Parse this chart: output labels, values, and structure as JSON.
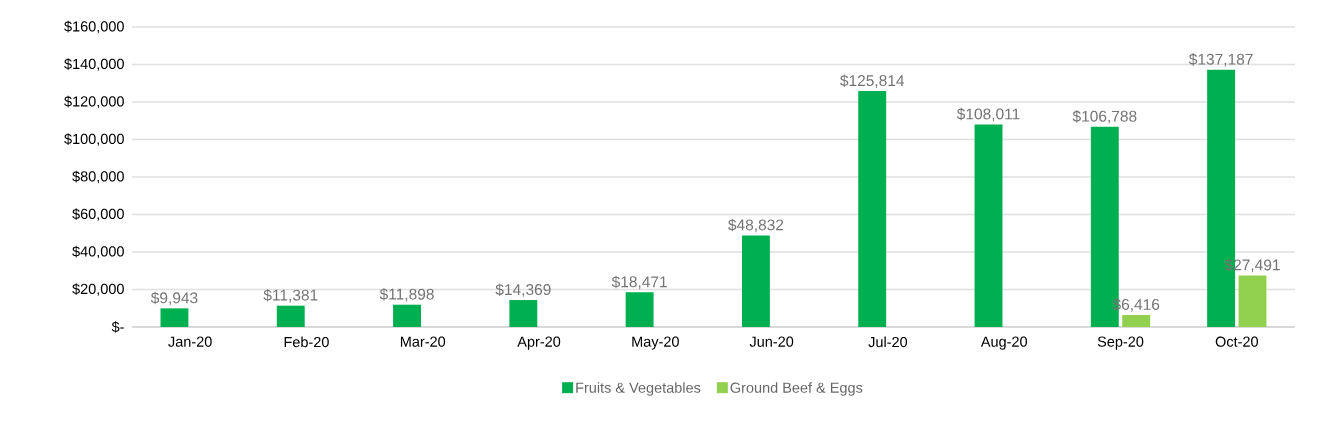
{
  "chart_data": {
    "type": "bar",
    "categories": [
      "Jan-20",
      "Feb-20",
      "Mar-20",
      "Apr-20",
      "May-20",
      "Jun-20",
      "Jul-20",
      "Aug-20",
      "Sep-20",
      "Oct-20"
    ],
    "series": [
      {
        "name": "Fruits & Vegetables",
        "color": "#00b050",
        "values": [
          9943,
          11381,
          11898,
          14369,
          18471,
          48832,
          125814,
          108011,
          106788,
          137187
        ],
        "value_labels": [
          "$9,943",
          "$11,381",
          "$11,898",
          "$14,369",
          "$18,471",
          "$48,832",
          "$125,814",
          "$108,011",
          "$106,788",
          "$137,187"
        ]
      },
      {
        "name": "Ground Beef & Eggs",
        "color": "#92d050",
        "values": [
          null,
          null,
          null,
          null,
          null,
          null,
          null,
          null,
          6416,
          27491
        ],
        "value_labels": [
          null,
          null,
          null,
          null,
          null,
          null,
          null,
          null,
          "$6,416",
          "$27,491"
        ]
      }
    ],
    "ylim": [
      0,
      160000
    ],
    "yticks": [
      {
        "value": 0,
        "label": "$-"
      },
      {
        "value": 20000,
        "label": "$20,000"
      },
      {
        "value": 40000,
        "label": "$40,000"
      },
      {
        "value": 60000,
        "label": "$60,000"
      },
      {
        "value": 80000,
        "label": "$80,000"
      },
      {
        "value": 100000,
        "label": "$100,000"
      },
      {
        "value": 120000,
        "label": "$120,000"
      },
      {
        "value": 140000,
        "label": "$140,000"
      },
      {
        "value": 160000,
        "label": "$160,000"
      }
    ],
    "grid": "y",
    "legend": "bottom"
  }
}
